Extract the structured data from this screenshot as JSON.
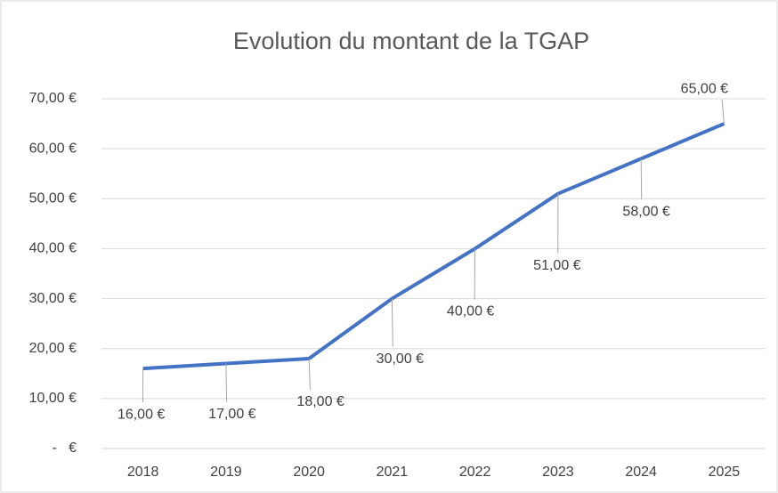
{
  "chart_data": {
    "type": "line",
    "title": "Evolution du montant de la TGAP",
    "categories": [
      "2018",
      "2019",
      "2020",
      "2021",
      "2022",
      "2023",
      "2024",
      "2025"
    ],
    "series": [
      {
        "name": "TGAP",
        "color": "#4472c4",
        "values": [
          16,
          17,
          18,
          30,
          40,
          51,
          58,
          65
        ],
        "value_labels": [
          "16,00 €",
          "17,00 €",
          "18,00 €",
          "30,00 €",
          "40,00 €",
          "51,00 €",
          "58,00 €",
          "65,00 €"
        ]
      }
    ],
    "ylim": [
      0,
      70
    ],
    "yticks": [
      {
        "value": 0,
        "label": "-   €"
      },
      {
        "value": 10,
        "label": "10,00 €"
      },
      {
        "value": 20,
        "label": "20,00 €"
      },
      {
        "value": 30,
        "label": "30,00 €"
      },
      {
        "value": 40,
        "label": "40,00 €"
      },
      {
        "value": 50,
        "label": "50,00 €"
      },
      {
        "value": 60,
        "label": "60,00 €"
      },
      {
        "value": 70,
        "label": "70,00 €"
      }
    ],
    "grid": true
  }
}
